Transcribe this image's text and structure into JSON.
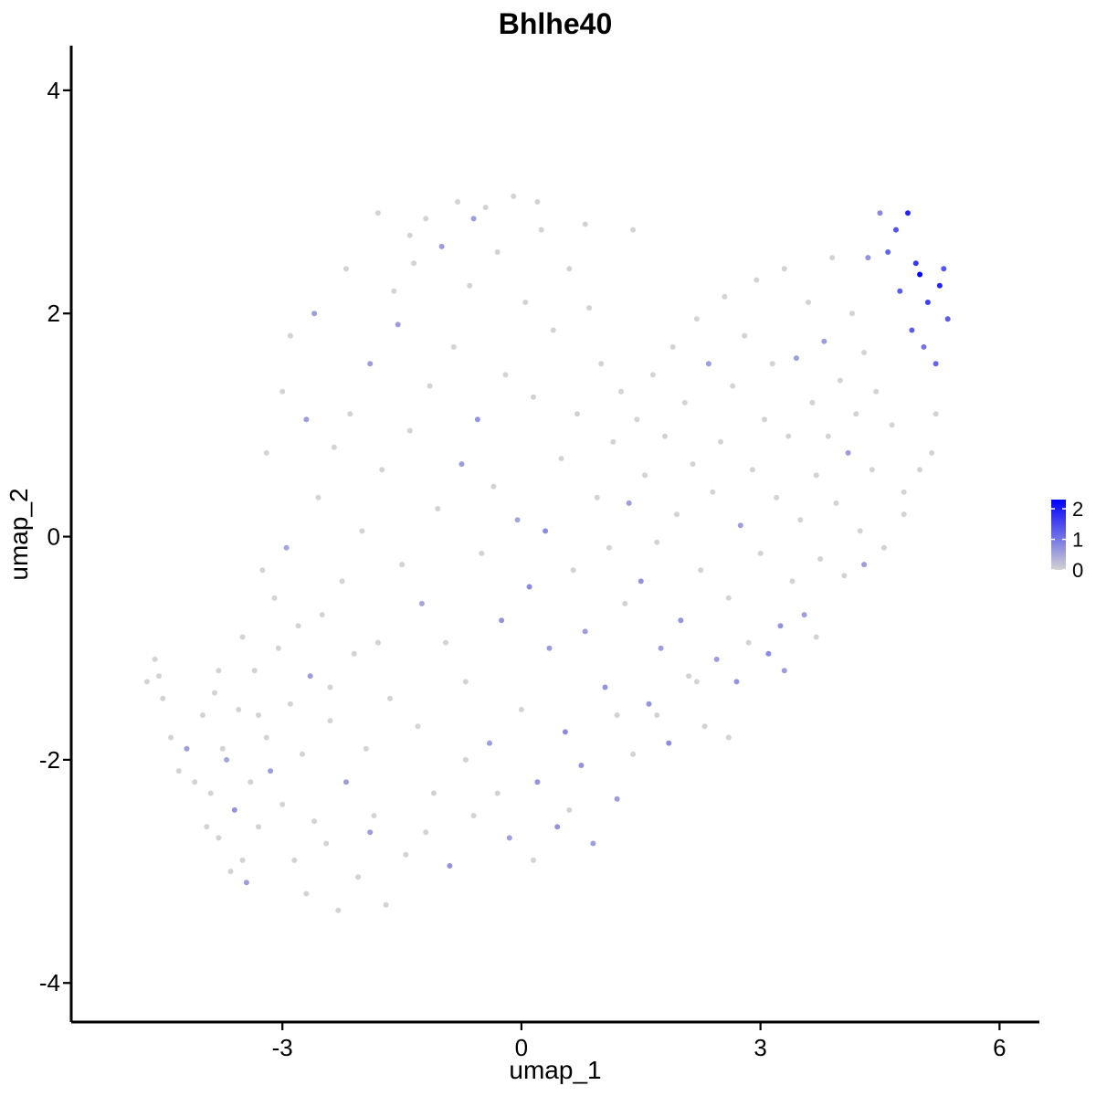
{
  "chart_data": {
    "type": "scatter",
    "title": "Bhlhe40",
    "xlabel": "umap_1",
    "ylabel": "umap_2",
    "xlim": [
      -5.65,
      6.5
    ],
    "ylim": [
      -4.35,
      4.4
    ],
    "x_ticks": [
      -3,
      0,
      3,
      6
    ],
    "y_ticks": [
      -4,
      -2,
      0,
      2,
      4
    ],
    "x_tick_labels": [
      "-3",
      "0",
      "3",
      "6"
    ],
    "y_tick_labels": [
      "-4",
      "-2",
      "0",
      "2",
      "4"
    ],
    "grid": false,
    "legend": {
      "placement": "right",
      "type": "colorbar",
      "title": "",
      "min": 0,
      "max": 2.3,
      "breaks": [
        0,
        1,
        2
      ],
      "break_labels": [
        "0",
        "1",
        "2"
      ],
      "low_color": "#d3d3d3",
      "high_color": "#0000ff"
    },
    "colors": {
      "low": "#d3d3d3",
      "high": "#0000ff"
    },
    "point_count_note": "",
    "points": [
      [
        -4.7,
        -1.3,
        0
      ],
      [
        -4.6,
        -1.1,
        0
      ],
      [
        -4.55,
        -1.25,
        0
      ],
      [
        -4.5,
        -1.45,
        0
      ],
      [
        -4.4,
        -1.8,
        0
      ],
      [
        -4.3,
        -2.1,
        0
      ],
      [
        -4.2,
        -1.9,
        0.6
      ],
      [
        -4.1,
        -2.2,
        0
      ],
      [
        -4.0,
        -1.6,
        0
      ],
      [
        -3.95,
        -2.6,
        0
      ],
      [
        -3.9,
        -2.3,
        0
      ],
      [
        -3.85,
        -1.4,
        0
      ],
      [
        -3.8,
        -2.7,
        0
      ],
      [
        -3.75,
        -1.9,
        0
      ],
      [
        -3.7,
        -2.0,
        0.5
      ],
      [
        -3.65,
        -3.0,
        0
      ],
      [
        -3.6,
        -2.45,
        0.7
      ],
      [
        -3.55,
        -1.55,
        0
      ],
      [
        -3.5,
        -2.9,
        0
      ],
      [
        -3.45,
        -3.1,
        0.6
      ],
      [
        -3.4,
        -2.2,
        0
      ],
      [
        -3.35,
        -1.2,
        0
      ],
      [
        -3.3,
        -2.6,
        0
      ],
      [
        -3.25,
        -0.3,
        0
      ],
      [
        -3.2,
        -1.8,
        0
      ],
      [
        -3.15,
        -2.1,
        0.6
      ],
      [
        -3.1,
        -0.55,
        0
      ],
      [
        -3.05,
        -1.0,
        0
      ],
      [
        -3.0,
        -2.4,
        0
      ],
      [
        -2.95,
        -0.1,
        0.5
      ],
      [
        -2.9,
        -1.5,
        0
      ],
      [
        -2.85,
        -2.9,
        0
      ],
      [
        -2.8,
        -0.8,
        0
      ],
      [
        -2.75,
        -1.95,
        0
      ],
      [
        -2.7,
        -3.2,
        0
      ],
      [
        -2.65,
        -1.25,
        0.6
      ],
      [
        -2.6,
        -2.55,
        0
      ],
      [
        -2.55,
        0.35,
        0
      ],
      [
        -2.5,
        -0.7,
        0
      ],
      [
        -2.45,
        -2.75,
        0
      ],
      [
        -2.4,
        -1.65,
        0
      ],
      [
        -2.35,
        0.8,
        0
      ],
      [
        -2.3,
        -3.35,
        0
      ],
      [
        -2.25,
        -0.4,
        0
      ],
      [
        -2.2,
        -2.2,
        0.6
      ],
      [
        -2.15,
        1.1,
        0
      ],
      [
        -2.1,
        -1.05,
        0
      ],
      [
        -2.05,
        -3.05,
        0
      ],
      [
        -2.0,
        0.05,
        0
      ],
      [
        -1.95,
        -1.9,
        0
      ],
      [
        -1.9,
        1.55,
        0.6
      ],
      [
        -1.85,
        -2.5,
        0
      ],
      [
        -1.8,
        -0.95,
        0
      ],
      [
        -1.75,
        0.6,
        0
      ],
      [
        -1.7,
        -3.3,
        0
      ],
      [
        -1.65,
        -1.45,
        0
      ],
      [
        -1.6,
        2.2,
        0
      ],
      [
        -1.55,
        1.9,
        0.6
      ],
      [
        -1.5,
        -0.25,
        0
      ],
      [
        -1.45,
        -2.85,
        0
      ],
      [
        -1.4,
        0.95,
        0
      ],
      [
        -1.35,
        2.45,
        0
      ],
      [
        -1.3,
        -1.7,
        0
      ],
      [
        -1.25,
        -0.6,
        0.5
      ],
      [
        -1.2,
        2.85,
        0
      ],
      [
        -1.15,
        1.35,
        0
      ],
      [
        -1.1,
        -2.3,
        0
      ],
      [
        -1.05,
        0.25,
        0
      ],
      [
        -1.0,
        2.6,
        0.6
      ],
      [
        -0.95,
        -0.95,
        0
      ],
      [
        -0.9,
        -2.95,
        0.7
      ],
      [
        -0.85,
        1.7,
        0
      ],
      [
        -0.8,
        3.0,
        0
      ],
      [
        -0.75,
        0.65,
        0.6
      ],
      [
        -0.7,
        -1.3,
        0
      ],
      [
        -0.65,
        2.25,
        0
      ],
      [
        -0.6,
        -2.5,
        0
      ],
      [
        -0.55,
        1.05,
        0.7
      ],
      [
        -0.5,
        -0.15,
        0
      ],
      [
        -0.45,
        2.95,
        0
      ],
      [
        -0.4,
        -1.85,
        0.6
      ],
      [
        -0.35,
        0.45,
        0
      ],
      [
        -0.3,
        2.55,
        0
      ],
      [
        -0.25,
        -0.75,
        0.7
      ],
      [
        -0.2,
        1.45,
        0
      ],
      [
        -0.15,
        -2.7,
        0.6
      ],
      [
        -0.1,
        3.05,
        0
      ],
      [
        -0.05,
        0.15,
        0.5
      ],
      [
        0.0,
        -1.55,
        0
      ],
      [
        0.05,
        2.1,
        0
      ],
      [
        0.1,
        -0.45,
        0.8
      ],
      [
        0.15,
        1.25,
        0
      ],
      [
        0.2,
        -2.2,
        0.7
      ],
      [
        0.25,
        2.75,
        0
      ],
      [
        0.3,
        0.05,
        0.8
      ],
      [
        0.35,
        -1.0,
        0.6
      ],
      [
        0.4,
        1.85,
        0
      ],
      [
        0.45,
        -2.6,
        0.7
      ],
      [
        0.5,
        0.7,
        0
      ],
      [
        0.55,
        -1.75,
        0.8
      ],
      [
        0.6,
        2.4,
        0
      ],
      [
        0.65,
        -0.3,
        0
      ],
      [
        0.7,
        1.1,
        0
      ],
      [
        0.75,
        -2.05,
        0.7
      ],
      [
        0.8,
        -0.85,
        0.6
      ],
      [
        0.85,
        2.05,
        0
      ],
      [
        0.9,
        -2.75,
        0.6
      ],
      [
        0.95,
        0.35,
        0
      ],
      [
        1.0,
        1.55,
        0
      ],
      [
        1.05,
        -1.35,
        0.7
      ],
      [
        1.1,
        -0.1,
        0
      ],
      [
        1.15,
        0.85,
        0
      ],
      [
        1.2,
        -2.35,
        0.6
      ],
      [
        1.25,
        1.3,
        0
      ],
      [
        1.3,
        -0.6,
        0
      ],
      [
        1.35,
        0.3,
        0.6
      ],
      [
        1.4,
        -1.95,
        0
      ],
      [
        1.45,
        1.05,
        0
      ],
      [
        1.5,
        -0.4,
        0.7
      ],
      [
        1.55,
        0.55,
        0
      ],
      [
        1.6,
        -1.5,
        0.7
      ],
      [
        1.65,
        1.45,
        0
      ],
      [
        1.7,
        -0.05,
        0
      ],
      [
        1.75,
        -1.0,
        0.6
      ],
      [
        1.8,
        0.9,
        0
      ],
      [
        1.85,
        -1.85,
        0.8
      ],
      [
        1.9,
        1.7,
        0
      ],
      [
        1.95,
        0.2,
        0
      ],
      [
        2.0,
        -0.75,
        0.7
      ],
      [
        2.05,
        1.2,
        0
      ],
      [
        2.1,
        -1.25,
        0
      ],
      [
        2.15,
        0.65,
        0
      ],
      [
        2.2,
        1.95,
        0
      ],
      [
        2.25,
        -0.3,
        0
      ],
      [
        2.3,
        -1.7,
        0
      ],
      [
        2.35,
        1.55,
        0.6
      ],
      [
        2.4,
        0.4,
        0
      ],
      [
        2.45,
        -1.1,
        0.6
      ],
      [
        2.5,
        0.85,
        0
      ],
      [
        2.55,
        2.15,
        0
      ],
      [
        2.6,
        -0.55,
        0
      ],
      [
        2.65,
        1.35,
        0
      ],
      [
        2.7,
        -1.3,
        0.7
      ],
      [
        2.75,
        0.1,
        0.6
      ],
      [
        2.8,
        1.8,
        0
      ],
      [
        2.85,
        -0.95,
        0
      ],
      [
        2.9,
        0.6,
        0
      ],
      [
        2.95,
        2.3,
        0
      ],
      [
        3.0,
        -0.15,
        0
      ],
      [
        3.05,
        1.05,
        0
      ],
      [
        3.1,
        -1.05,
        0.8
      ],
      [
        3.15,
        1.55,
        0
      ],
      [
        3.2,
        0.35,
        0
      ],
      [
        3.25,
        -0.8,
        0.7
      ],
      [
        3.3,
        2.4,
        0
      ],
      [
        3.35,
        0.9,
        0
      ],
      [
        3.4,
        -0.4,
        0
      ],
      [
        3.45,
        1.6,
        0.6
      ],
      [
        3.5,
        0.15,
        0
      ],
      [
        3.55,
        -0.7,
        0.6
      ],
      [
        3.6,
        2.1,
        0
      ],
      [
        3.65,
        1.2,
        0
      ],
      [
        3.7,
        0.55,
        0
      ],
      [
        3.75,
        -0.2,
        0
      ],
      [
        3.8,
        1.75,
        0.6
      ],
      [
        3.85,
        0.9,
        0
      ],
      [
        3.9,
        2.5,
        0
      ],
      [
        3.95,
        0.3,
        0
      ],
      [
        4.0,
        1.4,
        0
      ],
      [
        4.05,
        -0.35,
        0
      ],
      [
        4.1,
        0.75,
        0.6
      ],
      [
        4.15,
        2.0,
        0
      ],
      [
        4.2,
        1.1,
        0
      ],
      [
        4.25,
        0.05,
        0
      ],
      [
        4.3,
        1.65,
        0
      ],
      [
        4.35,
        2.5,
        0.7
      ],
      [
        4.4,
        0.6,
        0
      ],
      [
        4.45,
        1.3,
        0
      ],
      [
        4.5,
        2.9,
        0.8
      ],
      [
        4.55,
        -0.1,
        0
      ],
      [
        4.6,
        2.55,
        1.2
      ],
      [
        4.65,
        1.0,
        0
      ],
      [
        4.7,
        2.75,
        1.4
      ],
      [
        4.75,
        2.2,
        1.3
      ],
      [
        4.8,
        0.4,
        0
      ],
      [
        4.85,
        2.9,
        1.9
      ],
      [
        4.9,
        1.85,
        1.3
      ],
      [
        4.95,
        2.45,
        1.7
      ],
      [
        5.0,
        2.35,
        2.3
      ],
      [
        5.05,
        1.7,
        1.0
      ],
      [
        5.1,
        2.1,
        1.6
      ],
      [
        5.15,
        0.75,
        0
      ],
      [
        5.2,
        1.55,
        1.2
      ],
      [
        5.25,
        2.25,
        1.9
      ],
      [
        5.3,
        2.4,
        1.4
      ],
      [
        5.35,
        1.95,
        1.3
      ],
      [
        -2.9,
        1.8,
        0
      ],
      [
        -2.6,
        2.0,
        0.6
      ],
      [
        -2.2,
        2.4,
        0
      ],
      [
        -1.8,
        2.9,
        0
      ],
      [
        -1.4,
        2.7,
        0
      ],
      [
        -0.6,
        2.85,
        0.6
      ],
      [
        0.2,
        3.0,
        0
      ],
      [
        0.8,
        2.8,
        0
      ],
      [
        1.4,
        2.75,
        0
      ],
      [
        -3.2,
        0.75,
        0
      ],
      [
        -3.0,
        1.3,
        0
      ],
      [
        -2.7,
        1.05,
        0.6
      ],
      [
        -3.5,
        -0.9,
        0
      ],
      [
        -3.8,
        -1.2,
        0
      ],
      [
        -3.3,
        -1.6,
        0
      ],
      [
        -2.4,
        -1.35,
        0
      ],
      [
        -1.9,
        -2.65,
        0.6
      ],
      [
        -1.2,
        -2.65,
        0
      ],
      [
        -0.7,
        -2.0,
        0
      ],
      [
        -0.3,
        -2.3,
        0
      ],
      [
        0.15,
        -2.9,
        0
      ],
      [
        0.6,
        -2.45,
        0
      ],
      [
        1.2,
        -1.6,
        0
      ],
      [
        1.7,
        -1.6,
        0
      ],
      [
        2.2,
        -1.3,
        0
      ],
      [
        2.6,
        -1.8,
        0
      ],
      [
        3.3,
        -1.2,
        0.6
      ],
      [
        3.7,
        -0.9,
        0
      ],
      [
        4.3,
        -0.25,
        0.6
      ],
      [
        4.8,
        0.2,
        0
      ],
      [
        5.0,
        0.6,
        0
      ],
      [
        5.2,
        1.1,
        0
      ]
    ]
  }
}
